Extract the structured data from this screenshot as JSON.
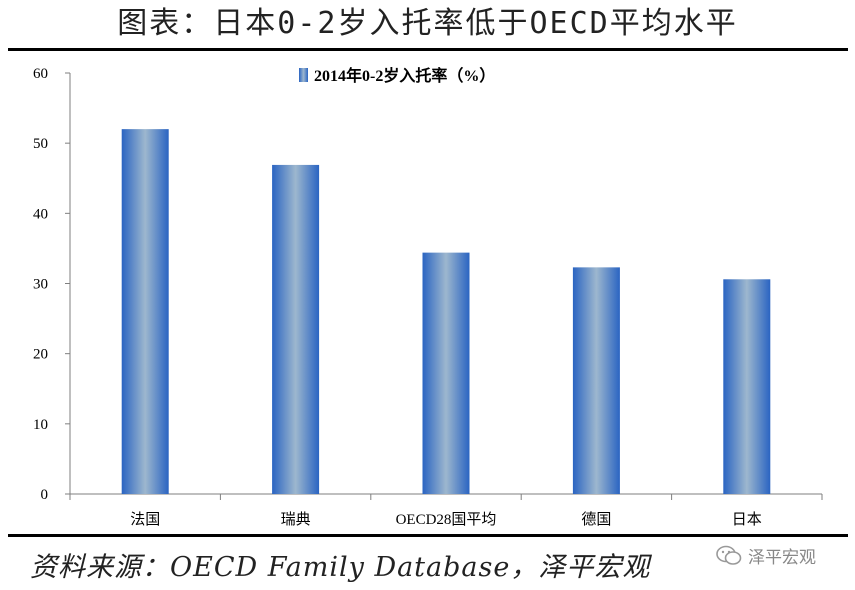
{
  "header": {
    "title": "图表：日本0-2岁入托率低于OECD平均水平"
  },
  "footer": {
    "source": "资料来源：OECD Family Database，泽平宏观",
    "watermark": "泽平宏观"
  },
  "chart_data": {
    "type": "bar",
    "categories": [
      "法国",
      "瑞典",
      "OECD28国平均",
      "德国",
      "日本"
    ],
    "series": [
      {
        "name": "2014年0-2岁入托率（%）",
        "values": [
          52.0,
          46.9,
          34.4,
          32.3,
          30.6
        ]
      }
    ],
    "ylim": [
      0,
      60
    ],
    "yticks": [
      0,
      10,
      20,
      30,
      40,
      50,
      60
    ],
    "legend": "top-center",
    "grid": false,
    "colors": {
      "bar_edge": "#2a64c2",
      "bar_center": "#9db7ce"
    }
  }
}
